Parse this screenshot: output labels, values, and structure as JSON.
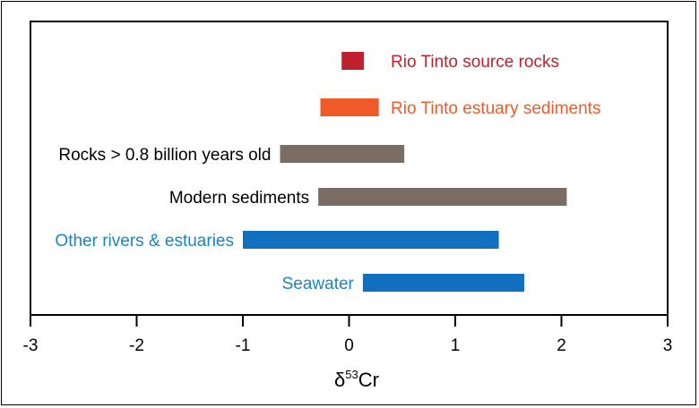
{
  "chart_data": {
    "type": "bar",
    "orientation": "horizontal-range",
    "xlabel_main": "δ",
    "xlabel_sup": "53",
    "xlabel_suffix": "Cr",
    "xlim": [
      -3,
      3
    ],
    "xticks": [
      "-3",
      "-2",
      "-1",
      "0",
      "1",
      "2",
      "3"
    ],
    "grid": false,
    "categories": [
      {
        "name": "Rio Tinto source rocks",
        "min": -0.07,
        "max": 0.14,
        "color": "#c0202e",
        "label_color": "#c0202e",
        "label_side": "right"
      },
      {
        "name": "Rio Tinto estuary sediments",
        "min": -0.27,
        "max": 0.28,
        "color": "#f05a28",
        "label_color": "#f05a28",
        "label_side": "right"
      },
      {
        "name": "Rocks > 0.8 billion years old",
        "min": -0.65,
        "max": 0.52,
        "color": "#7a6e64",
        "label_color": "#000000",
        "label_side": "left"
      },
      {
        "name": "Modern sediments",
        "min": -0.29,
        "max": 2.05,
        "color": "#7a6e64",
        "label_color": "#000000",
        "label_side": "left"
      },
      {
        "name": "Other rivers & estuaries",
        "min": -1.0,
        "max": 1.41,
        "color": "#1170c0",
        "label_color": "#1a84c8",
        "label_side": "left"
      },
      {
        "name": "Seawater",
        "min": 0.13,
        "max": 1.65,
        "color": "#1170c0",
        "label_color": "#1a84c8",
        "label_side": "left"
      }
    ]
  }
}
